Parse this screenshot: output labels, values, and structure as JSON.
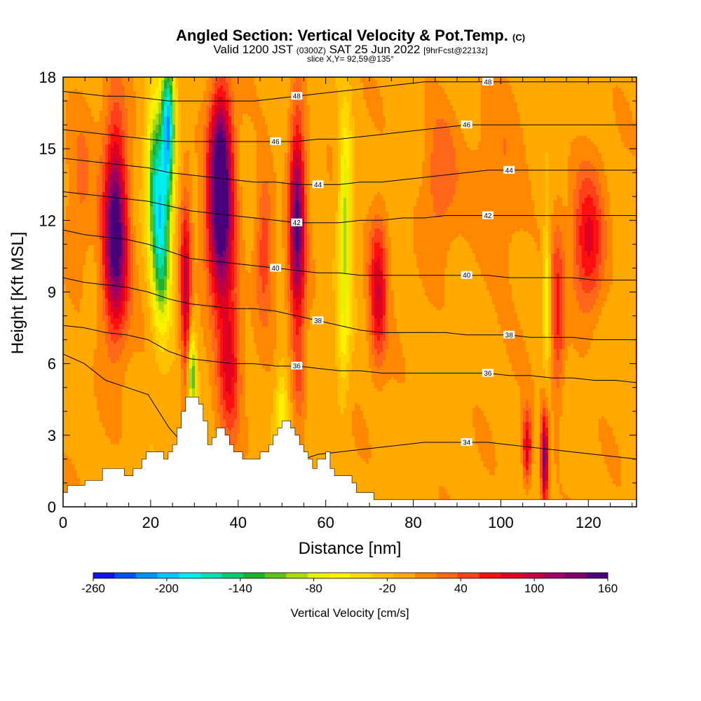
{
  "header": {
    "title_main": "Angled Section: Vertical Velocity & Pot.Temp.",
    "title_unit": "(C)",
    "valid_prefix": "Valid 1200 JST",
    "valid_zulu": "(0300Z)",
    "valid_date": "SAT 25 Jun 2022",
    "valid_fcst": "[9hrFcst@2213z]",
    "slice": "slice X,Y= 92,59@135°"
  },
  "chart_data": {
    "type": "heatmap",
    "xlabel": "Distance [nm]",
    "ylabel": "Height [Kft MSL]",
    "xlim": [
      0,
      131
    ],
    "ylim": [
      0,
      18
    ],
    "x_ticks": [
      0,
      20,
      40,
      60,
      80,
      100,
      120
    ],
    "y_ticks": [
      0,
      3,
      6,
      9,
      12,
      15,
      18
    ],
    "colorbar": {
      "title": "Vertical Velocity [cm/s]",
      "labels": [
        "-260",
        "-200",
        "-140",
        "-80",
        "-20",
        "40",
        "100",
        "160"
      ],
      "min": -260,
      "max": 160,
      "colors": [
        "#1010f0",
        "#0050ff",
        "#0090ff",
        "#00c8ff",
        "#00eef0",
        "#00e0b0",
        "#10c870",
        "#20b030",
        "#60c020",
        "#a8d818",
        "#e8f000",
        "#fff000",
        "#ffd800",
        "#ffc000",
        "#ffa800",
        "#ff8800",
        "#ff6818",
        "#ff4018",
        "#ff1010",
        "#e00020",
        "#c00040",
        "#a00060",
        "#80006a",
        "#4a007a"
      ]
    },
    "background_velocity": -5,
    "velocity_features": [
      {
        "x": 12,
        "z": 10.5,
        "w": 3,
        "h": 3.5,
        "v": 110
      },
      {
        "x": 12,
        "z": 13,
        "w": 2.5,
        "h": 4,
        "v": 90
      },
      {
        "x": 22.5,
        "z": 11,
        "w": 2.2,
        "h": 3.5,
        "v": -150
      },
      {
        "x": 24,
        "z": 16,
        "w": 1.5,
        "h": 3,
        "v": -180
      },
      {
        "x": 21,
        "z": 14,
        "w": 2,
        "h": 3,
        "v": -110
      },
      {
        "x": 28,
        "z": 9,
        "w": 1.2,
        "h": 4,
        "v": 100
      },
      {
        "x": 29.5,
        "z": 5.5,
        "w": 0.9,
        "h": 1.8,
        "v": -110
      },
      {
        "x": 36,
        "z": 11.5,
        "w": 3,
        "h": 3.5,
        "v": 150
      },
      {
        "x": 36,
        "z": 15,
        "w": 2.5,
        "h": 3,
        "v": 120
      },
      {
        "x": 38,
        "z": 6,
        "w": 2.5,
        "h": 3,
        "v": 80
      },
      {
        "x": 46,
        "z": 11,
        "w": 2,
        "h": 3,
        "v": 60
      },
      {
        "x": 53.5,
        "z": 12,
        "w": 1.8,
        "h": 4.5,
        "v": 150
      },
      {
        "x": 54,
        "z": 5.5,
        "w": 1.5,
        "h": 2,
        "v": 40
      },
      {
        "x": 50,
        "z": 4,
        "w": 1.5,
        "h": 2,
        "v": -60
      },
      {
        "x": 64.5,
        "z": 12.5,
        "w": 1.5,
        "h": 4,
        "v": -90
      },
      {
        "x": 64,
        "z": 7,
        "w": 1.5,
        "h": 3,
        "v": -40
      },
      {
        "x": 72,
        "z": 8.5,
        "w": 2,
        "h": 2.5,
        "v": 80
      },
      {
        "x": 72,
        "z": 11,
        "w": 2.5,
        "h": 2,
        "v": 40
      },
      {
        "x": 86,
        "z": 14,
        "w": 4,
        "h": 3,
        "v": 40
      },
      {
        "x": 106,
        "z": 2.5,
        "w": 1,
        "h": 1.5,
        "v": 100
      },
      {
        "x": 110,
        "z": 2,
        "w": 0.8,
        "h": 2,
        "v": 140
      },
      {
        "x": 110.5,
        "z": 9,
        "w": 0.8,
        "h": 3,
        "v": -70
      },
      {
        "x": 113,
        "z": 8,
        "w": 1.5,
        "h": 4,
        "v": 60
      },
      {
        "x": 120,
        "z": 11,
        "w": 3.5,
        "h": 3,
        "v": 80
      },
      {
        "x": 100,
        "z": 13,
        "w": 6,
        "h": 4,
        "v": 25
      },
      {
        "x": 4,
        "z": 13,
        "w": 3,
        "h": 4,
        "v": 25
      }
    ],
    "terrain": [
      [
        0,
        0.6
      ],
      [
        1,
        0.9
      ],
      [
        5,
        1.1
      ],
      [
        9,
        1.6
      ],
      [
        13,
        1.6
      ],
      [
        14,
        1.3
      ],
      [
        16,
        1.6
      ],
      [
        18,
        2.0
      ],
      [
        19,
        2.3
      ],
      [
        22,
        2.3
      ],
      [
        23,
        2.0
      ],
      [
        24,
        2.3
      ],
      [
        25,
        2.6
      ],
      [
        26,
        3.3
      ],
      [
        27,
        4.0
      ],
      [
        28,
        4.6
      ],
      [
        31,
        4.3
      ],
      [
        32,
        3.6
      ],
      [
        33,
        2.6
      ],
      [
        34,
        2.9
      ],
      [
        35,
        3.3
      ],
      [
        37,
        3.0
      ],
      [
        38,
        2.6
      ],
      [
        39,
        2.3
      ],
      [
        41,
        2.0
      ],
      [
        45,
        2.3
      ],
      [
        47,
        2.6
      ],
      [
        48,
        3.0
      ],
      [
        49,
        3.3
      ],
      [
        50,
        3.6
      ],
      [
        52,
        3.3
      ],
      [
        53,
        3.0
      ],
      [
        54,
        2.6
      ],
      [
        55,
        2.3
      ],
      [
        56,
        2.0
      ],
      [
        57,
        1.6
      ],
      [
        58,
        2.0
      ],
      [
        60,
        2.3
      ],
      [
        61,
        1.6
      ],
      [
        62,
        1.3
      ],
      [
        66,
        1.0
      ],
      [
        67,
        0.6
      ],
      [
        71,
        0.3
      ],
      [
        131,
        0.3
      ]
    ],
    "contours": [
      {
        "label": "34",
        "values": [
          6.4,
          6.0,
          5.3,
          5.0,
          4.7,
          3.3,
          2.3,
          1.7,
          1.6,
          1.6,
          1.7,
          1.9,
          2.2,
          2.3,
          2.4,
          2.5,
          2.6,
          2.7,
          2.7,
          2.7,
          2.7,
          2.6,
          2.5,
          2.4,
          2.3,
          2.2,
          2.1,
          2.0
        ]
      },
      {
        "label": "36",
        "values": [
          7.6,
          7.5,
          7.3,
          7.2,
          7.0,
          6.5,
          6.2,
          6.1,
          6.0,
          6.0,
          5.9,
          5.9,
          5.8,
          5.7,
          5.7,
          5.6,
          5.6,
          5.6,
          5.6,
          5.6,
          5.6,
          5.5,
          5.5,
          5.4,
          5.4,
          5.3,
          5.3,
          5.2
        ]
      },
      {
        "label": "38",
        "values": [
          9.6,
          9.4,
          9.3,
          9.2,
          9.0,
          8.7,
          8.5,
          8.4,
          8.3,
          8.3,
          8.2,
          8.0,
          7.8,
          7.6,
          7.4,
          7.3,
          7.3,
          7.3,
          7.3,
          7.2,
          7.2,
          7.2,
          7.1,
          7.1,
          7.1,
          7.0,
          7.0,
          7.0
        ]
      },
      {
        "label": "40",
        "values": [
          11.6,
          11.4,
          11.3,
          11.2,
          11.0,
          10.7,
          10.4,
          10.3,
          10.2,
          10.1,
          10.0,
          9.9,
          9.8,
          9.8,
          9.7,
          9.7,
          9.7,
          9.7,
          9.7,
          9.7,
          9.7,
          9.6,
          9.6,
          9.6,
          9.6,
          9.5,
          9.5,
          9.5
        ]
      },
      {
        "label": "42",
        "values": [
          13.2,
          13.1,
          13.0,
          12.9,
          12.8,
          12.6,
          12.4,
          12.3,
          12.2,
          12.1,
          12.0,
          11.9,
          11.9,
          11.9,
          12.0,
          12.0,
          12.1,
          12.1,
          12.2,
          12.2,
          12.2,
          12.2,
          12.2,
          12.2,
          12.2,
          12.2,
          12.2,
          12.2
        ]
      },
      {
        "label": "44",
        "values": [
          14.6,
          14.5,
          14.4,
          14.3,
          14.2,
          14.0,
          13.9,
          13.8,
          13.7,
          13.6,
          13.6,
          13.5,
          13.5,
          13.5,
          13.6,
          13.6,
          13.7,
          13.8,
          13.9,
          14.0,
          14.1,
          14.1,
          14.1,
          14.1,
          14.1,
          14.1,
          14.1,
          14.1
        ]
      },
      {
        "label": "46",
        "values": [
          15.8,
          15.7,
          15.6,
          15.5,
          15.4,
          15.3,
          15.3,
          15.3,
          15.3,
          15.3,
          15.3,
          15.3,
          15.4,
          15.4,
          15.5,
          15.6,
          15.7,
          15.8,
          15.9,
          16.0,
          16.0,
          16.0,
          16.0,
          16.0,
          16.0,
          16.0,
          16.0,
          16.0
        ]
      },
      {
        "label": "48",
        "values": [
          17.4,
          17.3,
          17.2,
          17.2,
          17.1,
          17.0,
          17.0,
          17.0,
          17.0,
          17.0,
          17.1,
          17.2,
          17.3,
          17.4,
          17.5,
          17.6,
          17.7,
          17.8,
          17.8,
          17.8,
          17.8,
          17.8,
          17.8,
          17.8,
          17.8,
          17.8,
          17.8,
          17.8
        ]
      }
    ]
  }
}
